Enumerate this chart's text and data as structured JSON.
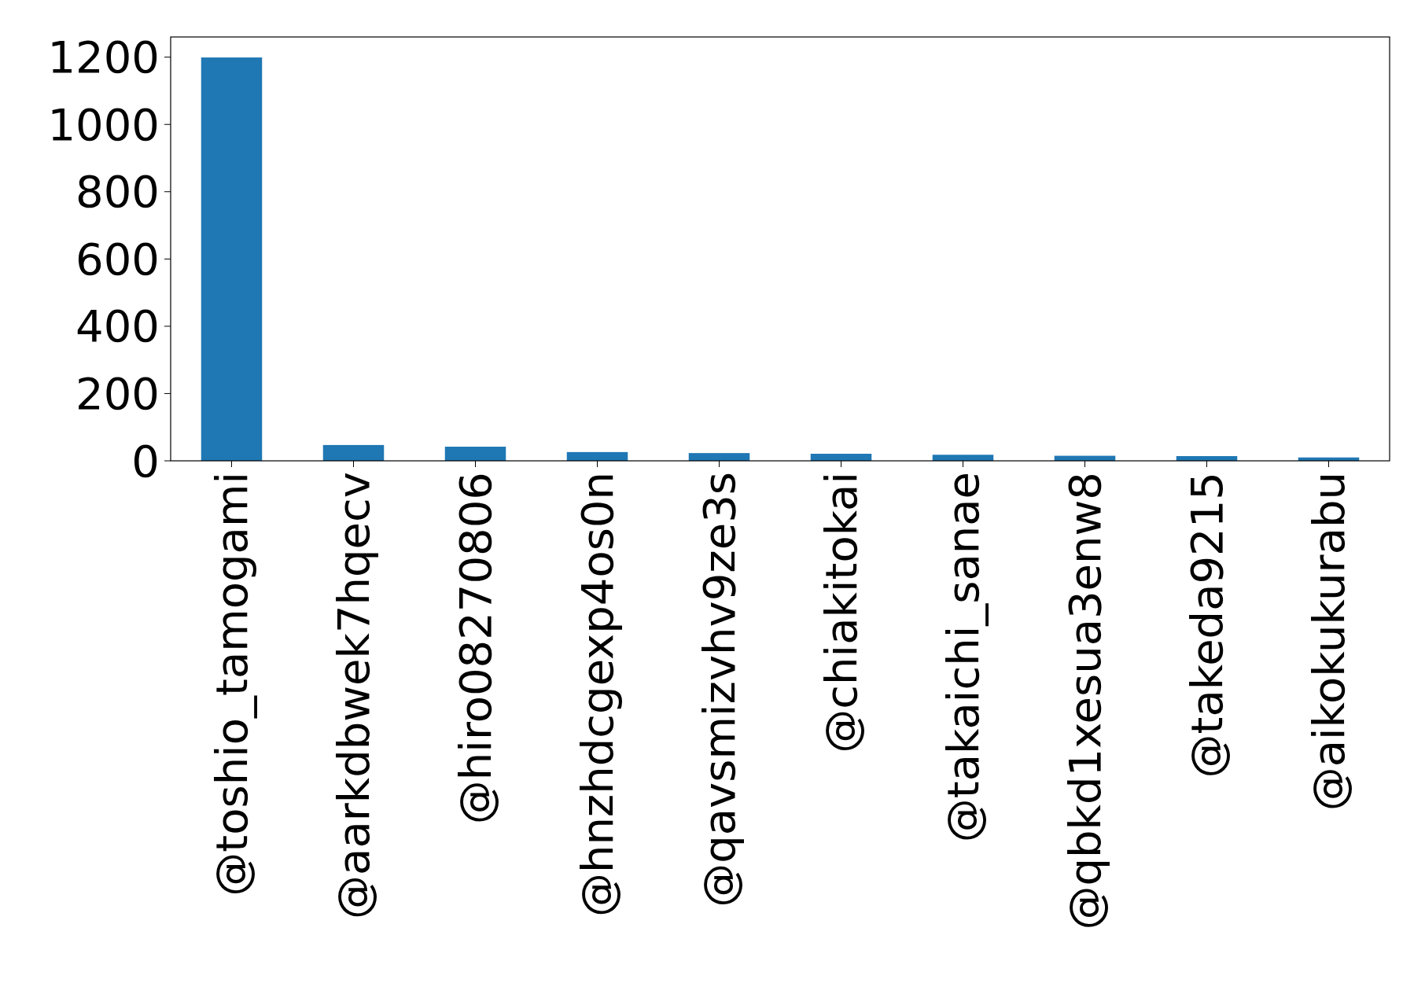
{
  "chart_data": {
    "type": "bar",
    "categories": [
      "@toshio_tamogami",
      "@aarkdbwek7hqecv",
      "@hiro08270806",
      "@hnzhdcgexp4os0n",
      "@qavsmizvhv9ze3s",
      "@chiakitokai",
      "@takaichi_sanae",
      "@qbkd1xesua3enw8",
      "@takeda9215",
      "@aikokukurabu"
    ],
    "values": [
      1199,
      47,
      42,
      26,
      23,
      21,
      18,
      15,
      14,
      10
    ],
    "color": "#1f77b4",
    "ylim": [
      0,
      1260
    ],
    "yticks": [
      0,
      200,
      400,
      600,
      800,
      1000,
      1200
    ],
    "grid": false
  }
}
